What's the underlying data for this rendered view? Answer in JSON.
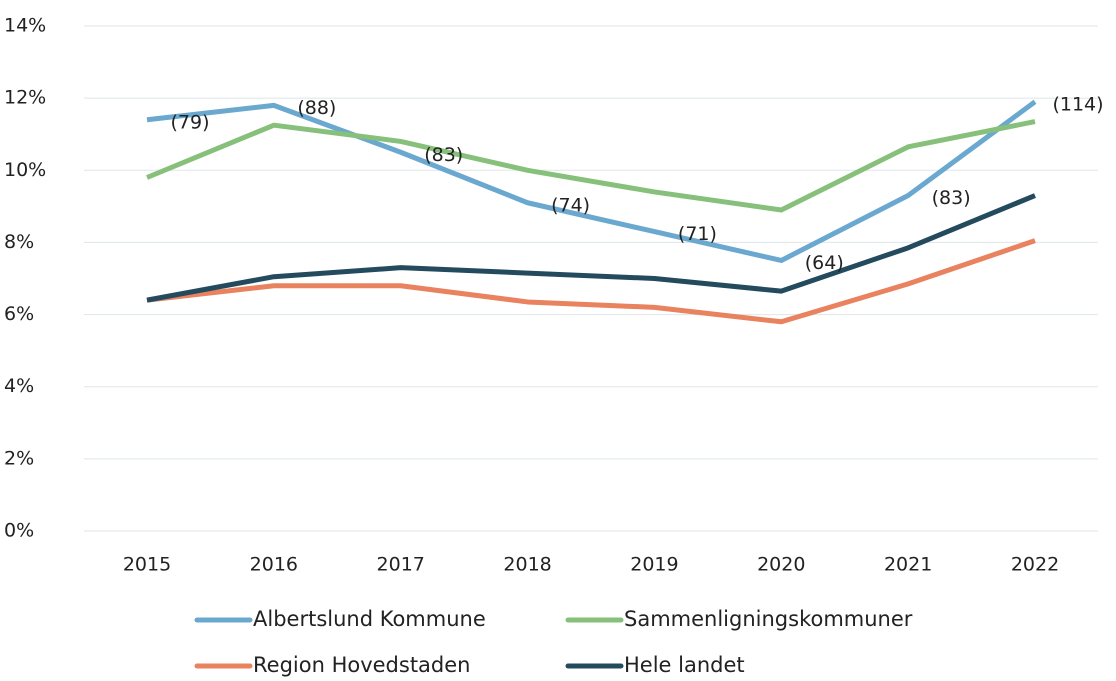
{
  "chart_data": {
    "type": "line",
    "categories": [
      "2015",
      "2016",
      "2017",
      "2018",
      "2019",
      "2020",
      "2021",
      "2022"
    ],
    "series": [
      {
        "name": "Albertslund Kommune",
        "color": "#6aa8cf",
        "values": [
          11.4,
          11.8,
          10.5,
          9.1,
          8.3,
          7.5,
          9.3,
          11.9
        ]
      },
      {
        "name": "Sammenligningskommuner",
        "color": "#86c07a",
        "values": [
          9.8,
          11.25,
          10.8,
          10.0,
          9.4,
          8.9,
          10.65,
          11.35
        ]
      },
      {
        "name": "Region Hovedstaden",
        "color": "#e8825f",
        "values": [
          6.4,
          6.8,
          6.8,
          6.35,
          6.2,
          5.8,
          6.85,
          8.05
        ]
      },
      {
        "name": "Hele landet",
        "color": "#244a5e",
        "values": [
          6.4,
          7.05,
          7.3,
          7.15,
          7.0,
          6.65,
          7.85,
          9.3
        ]
      }
    ],
    "annotations": [
      "(79)",
      "(88)",
      "(83)",
      "(74)",
      "(71)",
      "(64)",
      "(83)",
      "(114)"
    ],
    "ylim": [
      0,
      14
    ],
    "yticks": [
      {
        "value": 0,
        "label": "0%"
      },
      {
        "value": 2,
        "label": "2%"
      },
      {
        "value": 4,
        "label": "4%"
      },
      {
        "value": 6,
        "label": "6%"
      },
      {
        "value": 8,
        "label": "8%"
      },
      {
        "value": 10,
        "label": "10%"
      },
      {
        "value": 12,
        "label": "12%"
      },
      {
        "value": 14,
        "label": "14%"
      }
    ],
    "grid": true
  }
}
